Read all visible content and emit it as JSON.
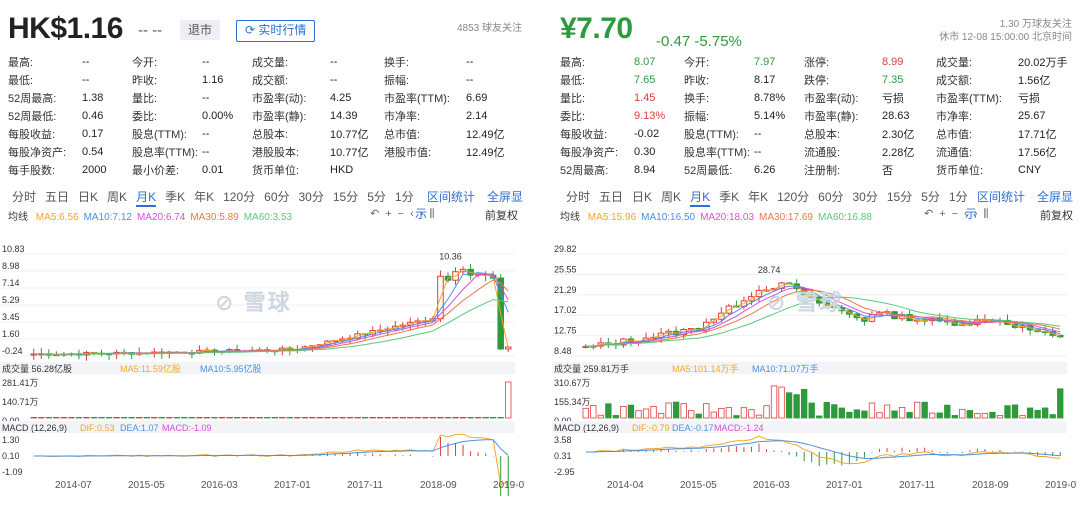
{
  "left": {
    "price": "HK$1.16",
    "change": "-- --",
    "status_badge": "退市",
    "realtime_button": "实时行情",
    "follow": "4853 球友关注",
    "quotes": [
      [
        "最高:",
        "--",
        "今开:",
        "--",
        "成交量:",
        "--",
        "换手:",
        "--"
      ],
      [
        "最低:",
        "--",
        "昨收:",
        "1.16",
        "成交额:",
        "--",
        "振幅:",
        "--"
      ],
      [
        "52周最高:",
        "1.38",
        "量比:",
        "--",
        "市盈率(动):",
        "4.25",
        "市盈率(TTM):",
        "6.69"
      ],
      [
        "52周最低:",
        "0.46",
        "委比:",
        "0.00%",
        "市盈率(静):",
        "14.39",
        "市净率:",
        "2.14"
      ],
      [
        "每股收益:",
        "0.17",
        "股息(TTM):",
        "--",
        "总股本:",
        "10.77亿",
        "总市值:",
        "12.49亿"
      ],
      [
        "每股净资产:",
        "0.54",
        "股息率(TTM):",
        "--",
        "港股股本:",
        "10.77亿",
        "港股市值:",
        "12.49亿"
      ],
      [
        "每手股数:",
        "2000",
        "最小价差:",
        "0.01",
        "货币单位:",
        "HKD",
        "",
        ""
      ]
    ],
    "tabs": [
      "分时",
      "五日",
      "日K",
      "周K",
      "月K",
      "季K",
      "年K",
      "120分",
      "60分",
      "30分",
      "15分",
      "5分",
      "1分"
    ],
    "active_tab": 4,
    "tab_actions": [
      "区间统计",
      "全屏显示"
    ],
    "ma_label": "均线",
    "ma": [
      "MA5:6.56",
      "MA10:7.12",
      "MA20:6.74",
      "MA30:5.89",
      "MA60:3.53"
    ],
    "fq": "前复权",
    "y_ticks": [
      "10.83",
      "8.98",
      "7.14",
      "5.29",
      "3.45",
      "1.60",
      "-0.24"
    ],
    "peak_label": "10.36",
    "vol_label": "成交量 56.28亿股",
    "vol_ma": [
      "MA5:11.59亿股",
      "MA10:5.95亿股"
    ],
    "vol_ticks": [
      "281.41万",
      "140.71万",
      "0.00"
    ],
    "macd_label": "MACD (12,26,9)",
    "macd_vals": [
      "DIF:0.53",
      "DEA:1.07",
      "MACD:-1.09"
    ],
    "macd_ticks": [
      "1.30",
      "0.10",
      "-1.09"
    ],
    "x_ticks": [
      "2014-07",
      "2015-05",
      "2016-03",
      "2017-01",
      "2017-11",
      "2018-09",
      "2019-07"
    ],
    "watermark": "雪球"
  },
  "right": {
    "price": "¥7.70",
    "change": "-0.47 -5.75%",
    "follow": "1.30 万球友关注",
    "time": "休市 12-08 15:00:00 北京时间",
    "quotes": [
      [
        "最高:",
        "8.07",
        "今开:",
        "7.97",
        "涨停:",
        "8.99",
        "成交量:",
        "20.02万手"
      ],
      [
        "最低:",
        "7.65",
        "昨收:",
        "8.17",
        "跌停:",
        "7.35",
        "成交额:",
        "1.56亿"
      ],
      [
        "量比:",
        "1.45",
        "换手:",
        "8.78%",
        "市盈率(动):",
        "亏损",
        "市盈率(TTM):",
        "亏损"
      ],
      [
        "委比:",
        "9.13%",
        "振幅:",
        "5.14%",
        "市盈率(静):",
        "28.63",
        "市净率:",
        "25.67"
      ],
      [
        "每股收益:",
        "-0.02",
        "股息(TTM):",
        "--",
        "总股本:",
        "2.30亿",
        "总市值:",
        "17.71亿"
      ],
      [
        "每股净资产:",
        "0.30",
        "股息率(TTM):",
        "--",
        "流通股:",
        "2.28亿",
        "流通值:",
        "17.56亿"
      ],
      [
        "52周最高:",
        "8.94",
        "52周最低:",
        "6.26",
        "注册制:",
        "否",
        "货币单位:",
        "CNY"
      ]
    ],
    "tabs": [
      "分时",
      "五日",
      "日K",
      "周K",
      "月K",
      "季K",
      "年K",
      "120分",
      "60分",
      "30分",
      "15分",
      "5分",
      "1分"
    ],
    "active_tab": 4,
    "tab_actions": [
      "区间统计",
      "全屏显示"
    ],
    "ma_label": "均线",
    "ma": [
      "MA5:15.96",
      "MA10:16.50",
      "MA20:18.03",
      "MA30:17.69",
      "MA60:16.88"
    ],
    "fq": "前复权",
    "y_ticks": [
      "29.82",
      "25.55",
      "21.29",
      "17.02",
      "12.75",
      "8.48"
    ],
    "peak_label": "28.74",
    "vol_label": "成交量 259.81万手",
    "vol_ma": [
      "MA5:101.14万手",
      "MA10:71.07万手"
    ],
    "vol_ticks": [
      "310.67万",
      "155.34万",
      "0.00"
    ],
    "macd_label": "MACD (12,26,9)",
    "macd_vals": [
      "DIF:-0.79",
      "DEA:-0.17",
      "MACD:-1.24"
    ],
    "macd_ticks": [
      "3.58",
      "0.31",
      "-2.95"
    ],
    "x_ticks": [
      "2014-04",
      "2015-05",
      "2016-03",
      "2017-01",
      "2017-11",
      "2018-09",
      "2019-07"
    ],
    "watermark": "雪球"
  },
  "colors": {
    "up": "#e03c3c",
    "down": "#2d9a3c",
    "ma5": "#f5a623",
    "ma10": "#4a90e2",
    "ma20": "#d64fd6",
    "ma30": "#e8774a",
    "ma60": "#5cc77a"
  }
}
